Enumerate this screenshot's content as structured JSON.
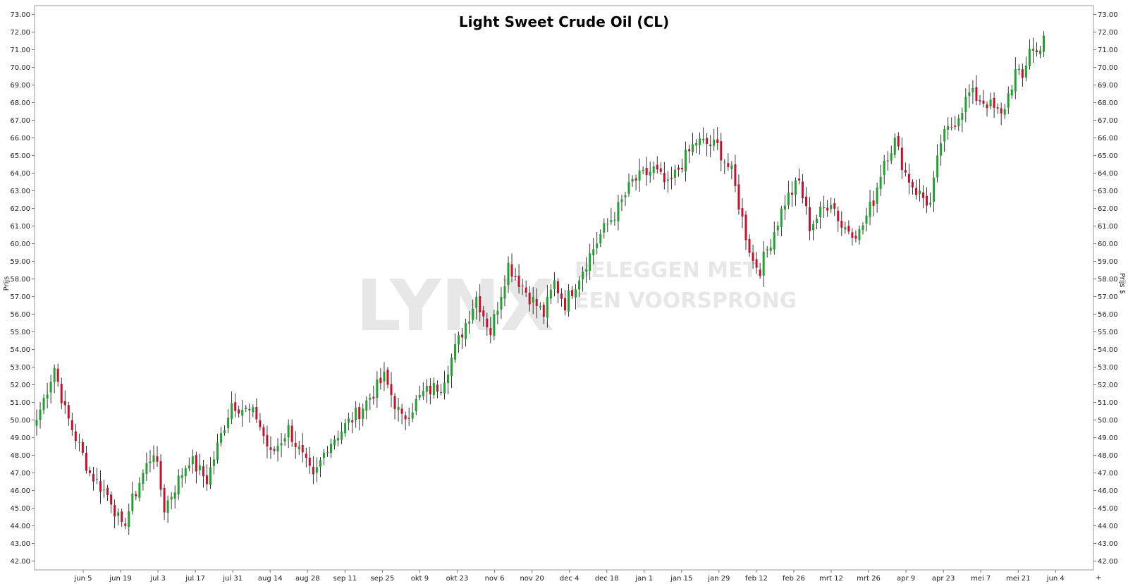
{
  "chart_data": {
    "type": "candlestick",
    "title": "Light Sweet Crude Oil (CL)",
    "ylabel_left": "Prijs",
    "ylabel_right": "Prijs $",
    "ylim": [
      41.5,
      73.5
    ],
    "y_ticks": [
      "42.00",
      "43.00",
      "44.00",
      "45.00",
      "46.00",
      "47.00",
      "48.00",
      "49.00",
      "50.00",
      "51.00",
      "52.00",
      "53.00",
      "54.00",
      "55.00",
      "56.00",
      "57.00",
      "58.00",
      "59.00",
      "60.00",
      "61.00",
      "62.00",
      "63.00",
      "64.00",
      "65.00",
      "66.00",
      "67.00",
      "68.00",
      "69.00",
      "70.00",
      "71.00",
      "72.00",
      "73.00"
    ],
    "x_ticks": [
      "jun 5",
      "jun 19",
      "jul 3",
      "jul 17",
      "jul 31",
      "aug 14",
      "aug 28",
      "sep 11",
      "sep 25",
      "okt 9",
      "okt 23",
      "nov 6",
      "nov 20",
      "dec 4",
      "dec 18",
      "jan 1",
      "jan 15",
      "jan 29",
      "feb 12",
      "feb 26",
      "mrt 12",
      "mrt 26",
      "apr 9",
      "apr 23",
      "mei 7",
      "mei 21",
      "jun 4"
    ],
    "grid": false,
    "colors": {
      "up": "#1fa22e",
      "down": "#c8102e",
      "wick": "#000000"
    },
    "anchors": [
      [
        0,
        50.0
      ],
      [
        5,
        53.0
      ],
      [
        8,
        50.5
      ],
      [
        15,
        47.0
      ],
      [
        21,
        45.5
      ],
      [
        24,
        43.8
      ],
      [
        29,
        46.5
      ],
      [
        33,
        48.3
      ],
      [
        36,
        45.0
      ],
      [
        43,
        47.8
      ],
      [
        48,
        46.6
      ],
      [
        55,
        51.0
      ],
      [
        62,
        50.2
      ],
      [
        66,
        48.0
      ],
      [
        71,
        49.5
      ],
      [
        78,
        46.6
      ],
      [
        82,
        48.6
      ],
      [
        91,
        50.5
      ],
      [
        98,
        52.4
      ],
      [
        103,
        50.0
      ],
      [
        109,
        51.5
      ],
      [
        114,
        52.0
      ],
      [
        119,
        54.5
      ],
      [
        124,
        57.0
      ],
      [
        128,
        55.0
      ],
      [
        133,
        58.8
      ],
      [
        139,
        57.0
      ],
      [
        143,
        56.0
      ],
      [
        146,
        57.8
      ],
      [
        149,
        56.6
      ],
      [
        154,
        58.6
      ],
      [
        159,
        60.5
      ],
      [
        164,
        62.0
      ],
      [
        168,
        63.5
      ],
      [
        174,
        64.2
      ],
      [
        178,
        63.2
      ],
      [
        182,
        64.6
      ],
      [
        186,
        65.8
      ],
      [
        192,
        65.5
      ],
      [
        196,
        64.0
      ],
      [
        200,
        60.5
      ],
      [
        202,
        59.0
      ],
      [
        204,
        58.6
      ],
      [
        207,
        60.2
      ],
      [
        211,
        62.4
      ],
      [
        215,
        63.5
      ],
      [
        218,
        61.0
      ],
      [
        224,
        62.5
      ],
      [
        227,
        61.0
      ],
      [
        232,
        60.6
      ],
      [
        236,
        62.5
      ],
      [
        239,
        64.8
      ],
      [
        242,
        65.8
      ],
      [
        245,
        64.0
      ],
      [
        248,
        63.0
      ],
      [
        252,
        62.2
      ],
      [
        255,
        65.8
      ],
      [
        259,
        67.0
      ],
      [
        263,
        68.5
      ],
      [
        268,
        68.0
      ],
      [
        272,
        67.2
      ],
      [
        276,
        69.7
      ],
      [
        278,
        69.3
      ],
      [
        280,
        71.2
      ],
      [
        282,
        70.8
      ],
      [
        284,
        71.8
      ]
    ]
  }
}
